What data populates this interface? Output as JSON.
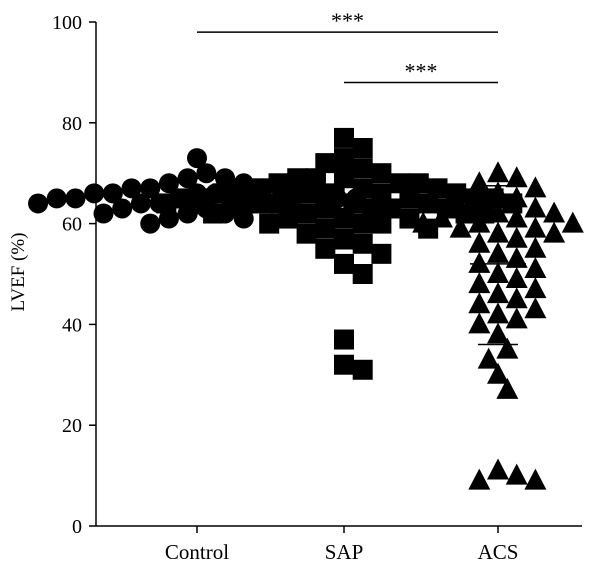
{
  "chart_data": {
    "type": "scatter",
    "title": "",
    "xlabel": "",
    "ylabel": "LVEF (%)",
    "ylim": [
      0,
      100
    ],
    "yticks": [
      0,
      20,
      40,
      60,
      80,
      100
    ],
    "categories": [
      "Control",
      "SAP",
      "ACS"
    ],
    "colors": {
      "points": "#000000",
      "axes": "#000000"
    },
    "markers": {
      "Control": "circle",
      "SAP": "square",
      "ACS": "triangle"
    },
    "series": [
      {
        "category": "Control",
        "values": [
          73,
          70,
          69,
          69,
          68,
          68,
          67,
          67,
          67,
          67,
          66,
          66,
          66,
          66,
          66,
          66,
          65,
          65,
          65,
          65,
          65,
          65,
          64,
          64,
          64,
          64,
          64,
          63,
          63,
          63,
          62,
          62,
          62,
          61,
          61,
          60
        ],
        "mean": 65.5,
        "sd_low": 62,
        "sd_high": 69
      },
      {
        "category": "SAP",
        "values": [
          77,
          75,
          73,
          72,
          71,
          70,
          69,
          69,
          69,
          68,
          68,
          68,
          67,
          67,
          67,
          67,
          66,
          66,
          66,
          66,
          66,
          65,
          65,
          65,
          65,
          65,
          65,
          64,
          64,
          64,
          64,
          64,
          64,
          63,
          63,
          63,
          63,
          63,
          62,
          62,
          62,
          62,
          61,
          61,
          61,
          60,
          60,
          60,
          59,
          59,
          58,
          57,
          56,
          55,
          54,
          52,
          50,
          37,
          32,
          31
        ],
        "mean": 63,
        "sd_low": 55,
        "sd_high": 71
      },
      {
        "category": "ACS",
        "values": [
          70,
          69,
          68,
          67,
          66,
          65,
          64,
          63,
          63,
          62,
          62,
          61,
          61,
          60,
          60,
          60,
          59,
          59,
          58,
          58,
          57,
          56,
          55,
          54,
          53,
          52,
          51,
          50,
          49,
          48,
          47,
          46,
          45,
          44,
          43,
          42,
          41,
          40,
          38,
          35,
          33,
          30,
          27,
          11,
          10,
          9,
          9
        ],
        "mean": 52,
        "sd_low": 36,
        "sd_high": 67.5
      }
    ],
    "annotations": [
      {
        "from": "Control",
        "to": "ACS",
        "label": "***",
        "y_level": 98
      },
      {
        "from": "SAP",
        "to": "ACS",
        "label": "***",
        "y_level": 88
      }
    ]
  }
}
